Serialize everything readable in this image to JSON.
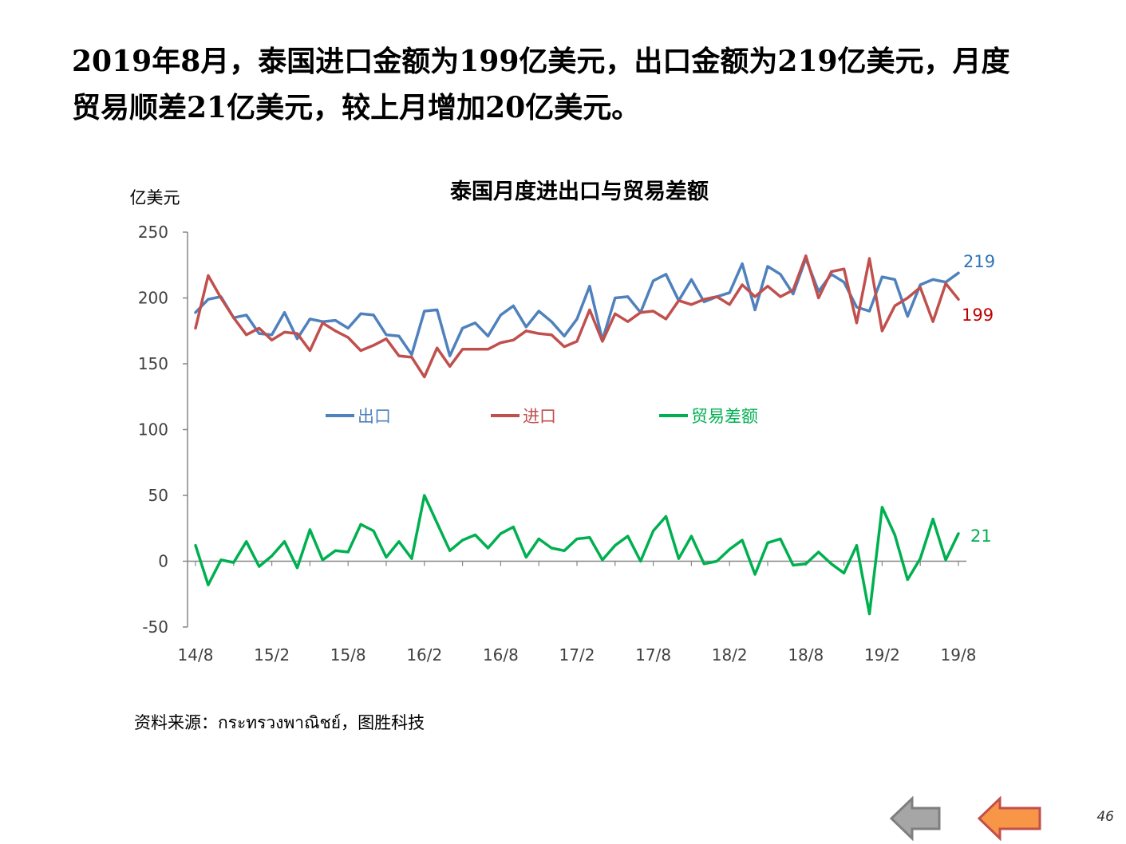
{
  "headline": {
    "line1": "2019年8月，泰国进口金额为199亿美元，出口金额为219亿美元，月度",
    "line2": "贸易顺差21亿美元，较上月增加20亿美元。"
  },
  "source": "资料来源：กระทรวงพาณิชย์，图胜科技",
  "page_number": "46",
  "colors": {
    "export": "#4F81BD",
    "import": "#C0504D",
    "balance": "#00B050",
    "nav_back": "#A6A6A6",
    "nav_forward": "#F79646"
  },
  "nav": {
    "back_icon": "left-arrow-gray",
    "forward_icon": "left-arrow-orange"
  },
  "chart_data": {
    "type": "line",
    "title": "泰国月度进出口与贸易差额",
    "ylabel": "亿美元",
    "xlabel": "",
    "ylim": [
      -50,
      250
    ],
    "yticks": [
      -50,
      0,
      50,
      100,
      150,
      200,
      250
    ],
    "xtick_labels": [
      "14/8",
      "15/2",
      "15/8",
      "16/2",
      "16/8",
      "17/2",
      "17/8",
      "18/2",
      "18/8",
      "19/2",
      "19/8"
    ],
    "x_start": "2014-08",
    "x_end": "2019-08",
    "legend_position": "middle",
    "series": [
      {
        "name": "出口",
        "key": "export",
        "end_label": "219",
        "values": [
          189,
          199,
          201,
          185,
          187,
          173,
          172,
          189,
          169,
          184,
          182,
          183,
          177,
          188,
          187,
          172,
          171,
          157,
          190,
          191,
          156,
          177,
          181,
          171,
          187,
          194,
          178,
          190,
          182,
          171,
          184,
          209,
          168,
          200,
          201,
          189,
          213,
          218,
          198,
          214,
          197,
          201,
          204,
          226,
          191,
          224,
          218,
          203,
          230,
          205,
          218,
          212,
          193,
          190,
          216,
          214,
          186,
          210,
          214,
          212,
          219
        ]
      },
      {
        "name": "进口",
        "key": "import",
        "end_label": "199",
        "values": [
          177,
          217,
          200,
          185,
          172,
          177,
          168,
          174,
          173,
          160,
          181,
          175,
          170,
          160,
          164,
          169,
          156,
          155,
          140,
          162,
          148,
          161,
          161,
          161,
          166,
          168,
          175,
          173,
          172,
          163,
          167,
          191,
          167,
          188,
          182,
          189,
          190,
          184,
          198,
          195,
          199,
          201,
          195,
          210,
          201,
          209,
          201,
          206,
          232,
          200,
          220,
          222,
          181,
          230,
          175,
          194,
          200,
          208,
          182,
          211,
          199
        ]
      },
      {
        "name": "贸易差额",
        "key": "balance",
        "end_label": "21",
        "values": [
          12,
          -18,
          1,
          -1,
          15,
          -4,
          4,
          15,
          -5,
          24,
          1,
          8,
          7,
          28,
          23,
          3,
          15,
          2,
          50,
          29,
          8,
          16,
          20,
          10,
          21,
          26,
          3,
          17,
          10,
          8,
          17,
          18,
          1,
          12,
          19,
          0,
          23,
          34,
          2,
          19,
          -2,
          0,
          9,
          16,
          -10,
          14,
          17,
          -3,
          -2,
          7,
          -2,
          -9,
          12,
          -40,
          41,
          20,
          -14,
          2,
          32,
          1,
          21
        ]
      }
    ]
  }
}
